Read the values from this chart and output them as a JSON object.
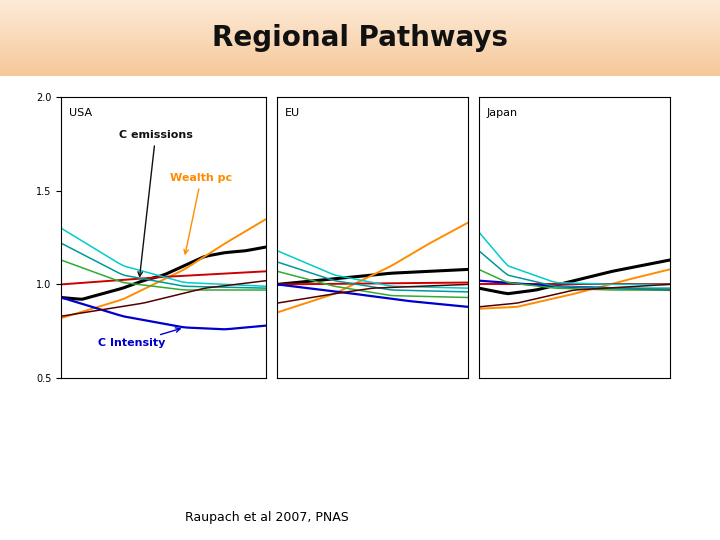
{
  "title": "Regional Pathways",
  "title_bg_start": "#f5c89a",
  "title_bg_end": "#fdebd8",
  "bg_color": "#ffffff",
  "footer_text": "Raupach et al 2007, PNAS",
  "regions": [
    "USA",
    "EU",
    "Japan"
  ],
  "ylim": [
    0.5,
    2.0
  ],
  "yticks": [
    0.5,
    1.0,
    1.5,
    2.0
  ],
  "n_points": 40,
  "colors_order": [
    "#000000",
    "#ff8c00",
    "#cc0000",
    "#0000cc",
    "#00cccc",
    "#009999",
    "#33aa33",
    "#550000"
  ],
  "lws_order": [
    2.2,
    1.4,
    1.4,
    1.6,
    1.1,
    1.1,
    1.1,
    1.1
  ]
}
